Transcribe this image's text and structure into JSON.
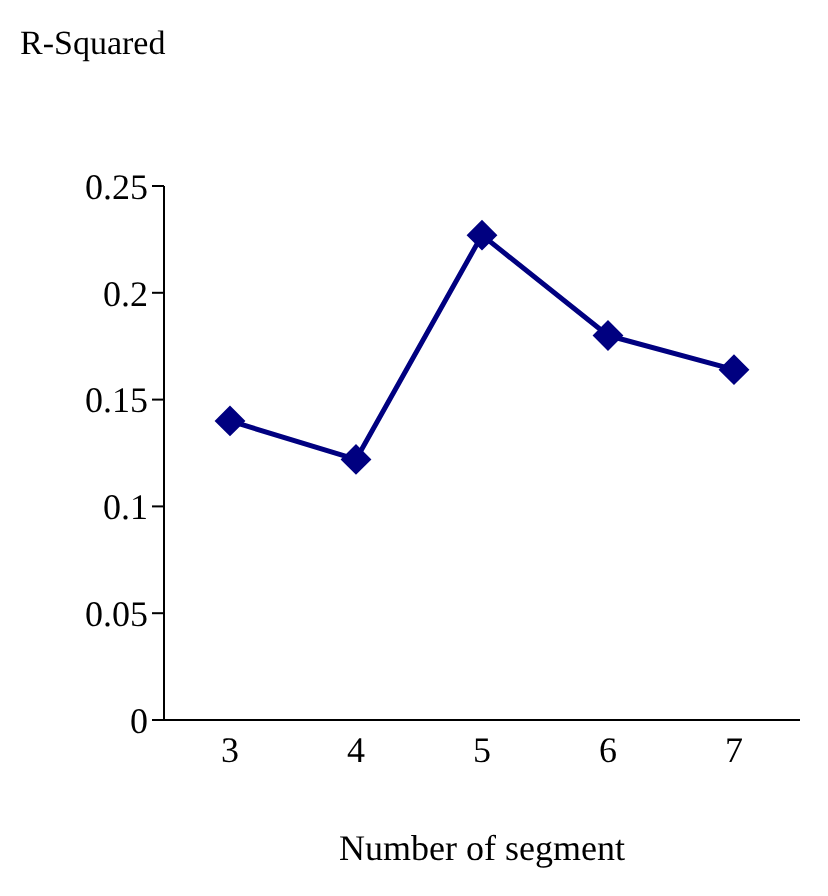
{
  "chart_data": {
    "type": "line",
    "ylabel": "R-Squared",
    "xlabel": "Number of segment",
    "categories": [
      "3",
      "4",
      "5",
      "6",
      "7"
    ],
    "series": [
      {
        "color": "#000080",
        "values": [
          0.14,
          0.122,
          0.227,
          0.18,
          0.164
        ]
      }
    ],
    "ylim": [
      0,
      0.25
    ],
    "yticks": [
      0,
      0.05,
      0.1,
      0.15,
      0.2,
      0.25
    ],
    "marker": "diamond",
    "grid": false,
    "legend": false
  }
}
